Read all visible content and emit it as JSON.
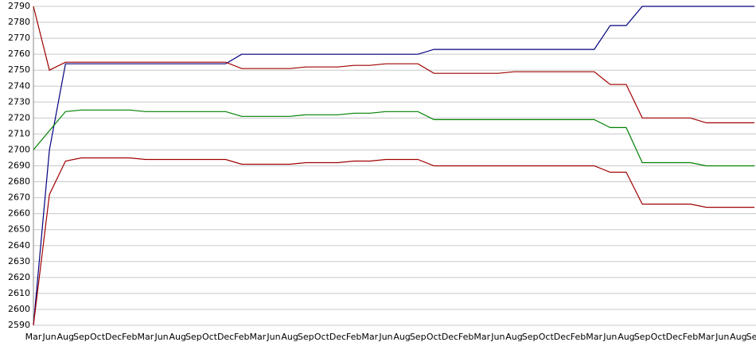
{
  "chart_data": {
    "type": "line",
    "categories": [
      "Mar",
      "Jun",
      "Aug",
      "Sep",
      "Oct",
      "Dec",
      "Feb",
      "Mar",
      "Jun",
      "Aug",
      "Sep",
      "Oct",
      "Dec",
      "Feb",
      "Mar",
      "Jun",
      "Aug",
      "Sep",
      "Oct",
      "Dec",
      "Feb",
      "Mar",
      "Jun",
      "Aug",
      "Sep",
      "Oct",
      "Dec",
      "Feb",
      "Mar",
      "Jun",
      "Aug",
      "Sep",
      "Oct",
      "Dec",
      "Feb",
      "Mar",
      "Jun",
      "Aug",
      "Sep",
      "Oct",
      "Dec",
      "Feb",
      "Mar",
      "Jun",
      "Aug",
      "Sep"
    ],
    "series": [
      {
        "color": "#000080",
        "values": [
          2590,
          2700,
          2754,
          2754,
          2754,
          2754,
          2754,
          2754,
          2754,
          2754,
          2754,
          2754,
          2754,
          2760,
          2760,
          2760,
          2760,
          2760,
          2760,
          2760,
          2760,
          2760,
          2760,
          2760,
          2760,
          2763,
          2763,
          2763,
          2763,
          2763,
          2763,
          2763,
          2763,
          2763,
          2763,
          2763,
          2778,
          2778,
          2790,
          2790,
          2790,
          2790,
          2790,
          2790,
          2790,
          2790
        ]
      },
      {
        "color": "#a00000",
        "values": [
          2790,
          2750,
          2755,
          2755,
          2755,
          2755,
          2755,
          2755,
          2755,
          2755,
          2755,
          2755,
          2755,
          2751,
          2751,
          2751,
          2751,
          2752,
          2752,
          2752,
          2753,
          2753,
          2754,
          2754,
          2754,
          2748,
          2748,
          2748,
          2748,
          2748,
          2749,
          2749,
          2749,
          2749,
          2749,
          2749,
          2741,
          2741,
          2720,
          2720,
          2720,
          2720,
          2717,
          2717,
          2717,
          2717
        ]
      },
      {
        "color": "#008000",
        "values": [
          2700,
          2712,
          2724,
          2725,
          2725,
          2725,
          2725,
          2724,
          2724,
          2724,
          2724,
          2724,
          2724,
          2721,
          2721,
          2721,
          2721,
          2722,
          2722,
          2722,
          2723,
          2723,
          2724,
          2724,
          2724,
          2719,
          2719,
          2719,
          2719,
          2719,
          2719,
          2719,
          2719,
          2719,
          2719,
          2719,
          2714,
          2714,
          2692,
          2692,
          2692,
          2692,
          2690,
          2690,
          2690,
          2690
        ]
      },
      {
        "color": "#a00000",
        "values": [
          2590,
          2672,
          2693,
          2695,
          2695,
          2695,
          2695,
          2694,
          2694,
          2694,
          2694,
          2694,
          2694,
          2691,
          2691,
          2691,
          2691,
          2692,
          2692,
          2692,
          2693,
          2693,
          2694,
          2694,
          2694,
          2690,
          2690,
          2690,
          2690,
          2690,
          2690,
          2690,
          2690,
          2690,
          2690,
          2690,
          2686,
          2686,
          2666,
          2666,
          2666,
          2666,
          2664,
          2664,
          2664,
          2664
        ]
      }
    ],
    "ylim": [
      2590,
      2790
    ],
    "yticks": [
      2590,
      2600,
      2610,
      2620,
      2630,
      2640,
      2650,
      2660,
      2670,
      2680,
      2690,
      2700,
      2710,
      2720,
      2730,
      2740,
      2750,
      2760,
      2770,
      2780,
      2790
    ],
    "grid": true
  }
}
